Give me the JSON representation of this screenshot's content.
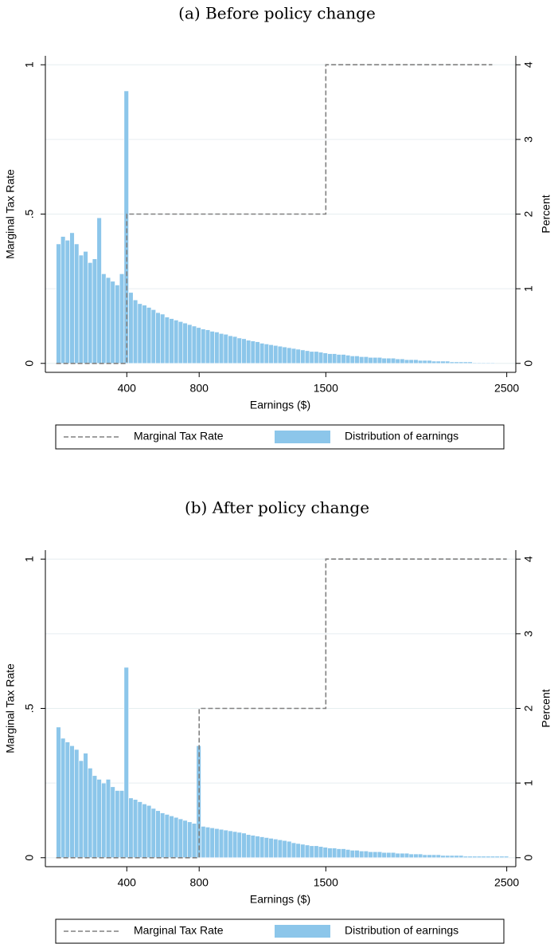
{
  "chart_data": [
    {
      "type": "histogram",
      "title": "(a) Before policy change",
      "xlabel": "Earnings ($)",
      "ylabel": "Marginal Tax Rate",
      "y2label": "Percent",
      "xlim": [
        -50,
        2550
      ],
      "xticks": [
        400,
        800,
        1500,
        2500
      ],
      "ylim": [
        -0.03,
        1.03
      ],
      "yticks": [
        0,
        {
          "value": 0.5,
          "label": ".5"
        },
        1
      ],
      "y2lim": [
        -0.12,
        4.12
      ],
      "y2ticks": [
        0,
        1,
        2,
        3,
        4
      ],
      "grid": true,
      "series": [
        {
          "type": "line",
          "name": "Marginal Tax Rate",
          "color": "#808080",
          "x": [
            10,
            400,
            400,
            1500,
            1500,
            2420
          ],
          "values": [
            0,
            0,
            0.5,
            0.5,
            1,
            1
          ]
        },
        {
          "type": "histogram",
          "name": "Distribution of earnings",
          "color": "#8cc6ea",
          "axis": "y2",
          "bins": [
            10,
            35,
            60,
            85,
            110,
            135,
            160,
            185,
            210,
            235,
            260,
            285,
            310,
            335,
            360,
            385,
            410,
            435,
            460,
            485,
            510,
            535,
            560,
            585,
            610,
            635,
            660,
            685,
            710,
            735,
            760,
            785,
            810,
            835,
            860,
            885,
            910,
            935,
            960,
            985,
            1010,
            1035,
            1060,
            1085,
            1110,
            1135,
            1160,
            1185,
            1210,
            1235,
            1260,
            1285,
            1310,
            1335,
            1360,
            1385,
            1410,
            1435,
            1460,
            1485,
            1510,
            1535,
            1560,
            1585,
            1610,
            1635,
            1660,
            1685,
            1710,
            1735,
            1760,
            1785,
            1810,
            1835,
            1860,
            1885,
            1910,
            1935,
            1960,
            1985,
            2010,
            2035,
            2060,
            2085,
            2110,
            2135,
            2160,
            2185,
            2210,
            2235,
            2260,
            2285,
            2310,
            2335,
            2360,
            2385,
            2410,
            2435
          ],
          "values": [
            1.6,
            1.7,
            1.65,
            1.75,
            1.6,
            1.45,
            1.5,
            1.35,
            1.4,
            1.95,
            1.2,
            1.15,
            1.1,
            1.05,
            1.2,
            3.65,
            0.95,
            0.85,
            0.8,
            0.78,
            0.75,
            0.72,
            0.68,
            0.66,
            0.62,
            0.6,
            0.58,
            0.56,
            0.54,
            0.52,
            0.5,
            0.48,
            0.46,
            0.45,
            0.43,
            0.42,
            0.4,
            0.39,
            0.37,
            0.36,
            0.34,
            0.33,
            0.31,
            0.3,
            0.29,
            0.27,
            0.26,
            0.25,
            0.24,
            0.23,
            0.22,
            0.21,
            0.2,
            0.19,
            0.18,
            0.17,
            0.16,
            0.16,
            0.15,
            0.14,
            0.13,
            0.13,
            0.12,
            0.12,
            0.11,
            0.1,
            0.1,
            0.09,
            0.09,
            0.08,
            0.08,
            0.08,
            0.07,
            0.07,
            0.07,
            0.06,
            0.06,
            0.05,
            0.05,
            0.05,
            0.04,
            0.04,
            0.04,
            0.03,
            0.03,
            0.03,
            0.03,
            0.02,
            0.02,
            0.02,
            0.02,
            0.02,
            0.01,
            0.01,
            0.01,
            0.01,
            0.01
          ]
        }
      ]
    },
    {
      "type": "histogram",
      "title": "(b) After policy change",
      "xlabel": "Earnings ($)",
      "ylabel": "Marginal Tax Rate",
      "y2label": "Percent",
      "xlim": [
        -50,
        2550
      ],
      "xticks": [
        400,
        800,
        1500,
        2500
      ],
      "ylim": [
        -0.03,
        1.03
      ],
      "yticks": [
        0,
        {
          "value": 0.5,
          "label": ".5"
        },
        1
      ],
      "y2lim": [
        -0.12,
        4.12
      ],
      "y2ticks": [
        0,
        1,
        2,
        3,
        4
      ],
      "grid": true,
      "series": [
        {
          "type": "line",
          "name": "Marginal Tax Rate",
          "color": "#808080",
          "x": [
            10,
            800,
            800,
            1500,
            1500,
            2500
          ],
          "values": [
            0,
            0,
            0.5,
            0.5,
            1,
            1
          ]
        },
        {
          "type": "histogram",
          "name": "Distribution of earnings",
          "color": "#8cc6ea",
          "axis": "y2",
          "bins": [
            10,
            35,
            60,
            85,
            110,
            135,
            160,
            185,
            210,
            235,
            260,
            285,
            310,
            335,
            360,
            385,
            410,
            435,
            460,
            485,
            510,
            535,
            560,
            585,
            610,
            635,
            660,
            685,
            710,
            735,
            760,
            785,
            810,
            835,
            860,
            885,
            910,
            935,
            960,
            985,
            1010,
            1035,
            1060,
            1085,
            1110,
            1135,
            1160,
            1185,
            1210,
            1235,
            1260,
            1285,
            1310,
            1335,
            1360,
            1385,
            1410,
            1435,
            1460,
            1485,
            1510,
            1535,
            1560,
            1585,
            1610,
            1635,
            1660,
            1685,
            1710,
            1735,
            1760,
            1785,
            1810,
            1835,
            1860,
            1885,
            1910,
            1935,
            1960,
            1985,
            2010,
            2035,
            2060,
            2085,
            2110,
            2135,
            2160,
            2185,
            2210,
            2235,
            2260,
            2285,
            2310,
            2335,
            2360,
            2385,
            2410,
            2435,
            2460,
            2485,
            2510
          ],
          "values": [
            1.75,
            1.6,
            1.55,
            1.5,
            1.45,
            1.3,
            1.4,
            1.2,
            1.1,
            1.05,
            1.0,
            1.05,
            0.95,
            0.9,
            0.9,
            2.55,
            0.8,
            0.78,
            0.75,
            0.72,
            0.7,
            0.66,
            0.63,
            0.6,
            0.58,
            0.56,
            0.54,
            0.52,
            0.5,
            0.48,
            0.46,
            1.5,
            0.42,
            0.41,
            0.4,
            0.39,
            0.38,
            0.37,
            0.36,
            0.35,
            0.34,
            0.33,
            0.31,
            0.3,
            0.29,
            0.28,
            0.27,
            0.26,
            0.25,
            0.24,
            0.23,
            0.22,
            0.2,
            0.19,
            0.18,
            0.17,
            0.16,
            0.16,
            0.15,
            0.14,
            0.13,
            0.13,
            0.12,
            0.12,
            0.11,
            0.1,
            0.1,
            0.09,
            0.09,
            0.08,
            0.08,
            0.08,
            0.07,
            0.07,
            0.07,
            0.06,
            0.06,
            0.06,
            0.05,
            0.05,
            0.05,
            0.04,
            0.04,
            0.04,
            0.04,
            0.03,
            0.03,
            0.03,
            0.03,
            0.03,
            0.02,
            0.02,
            0.02,
            0.02,
            0.02,
            0.02,
            0.02,
            0.02,
            0.02,
            0.02
          ]
        }
      ]
    }
  ]
}
